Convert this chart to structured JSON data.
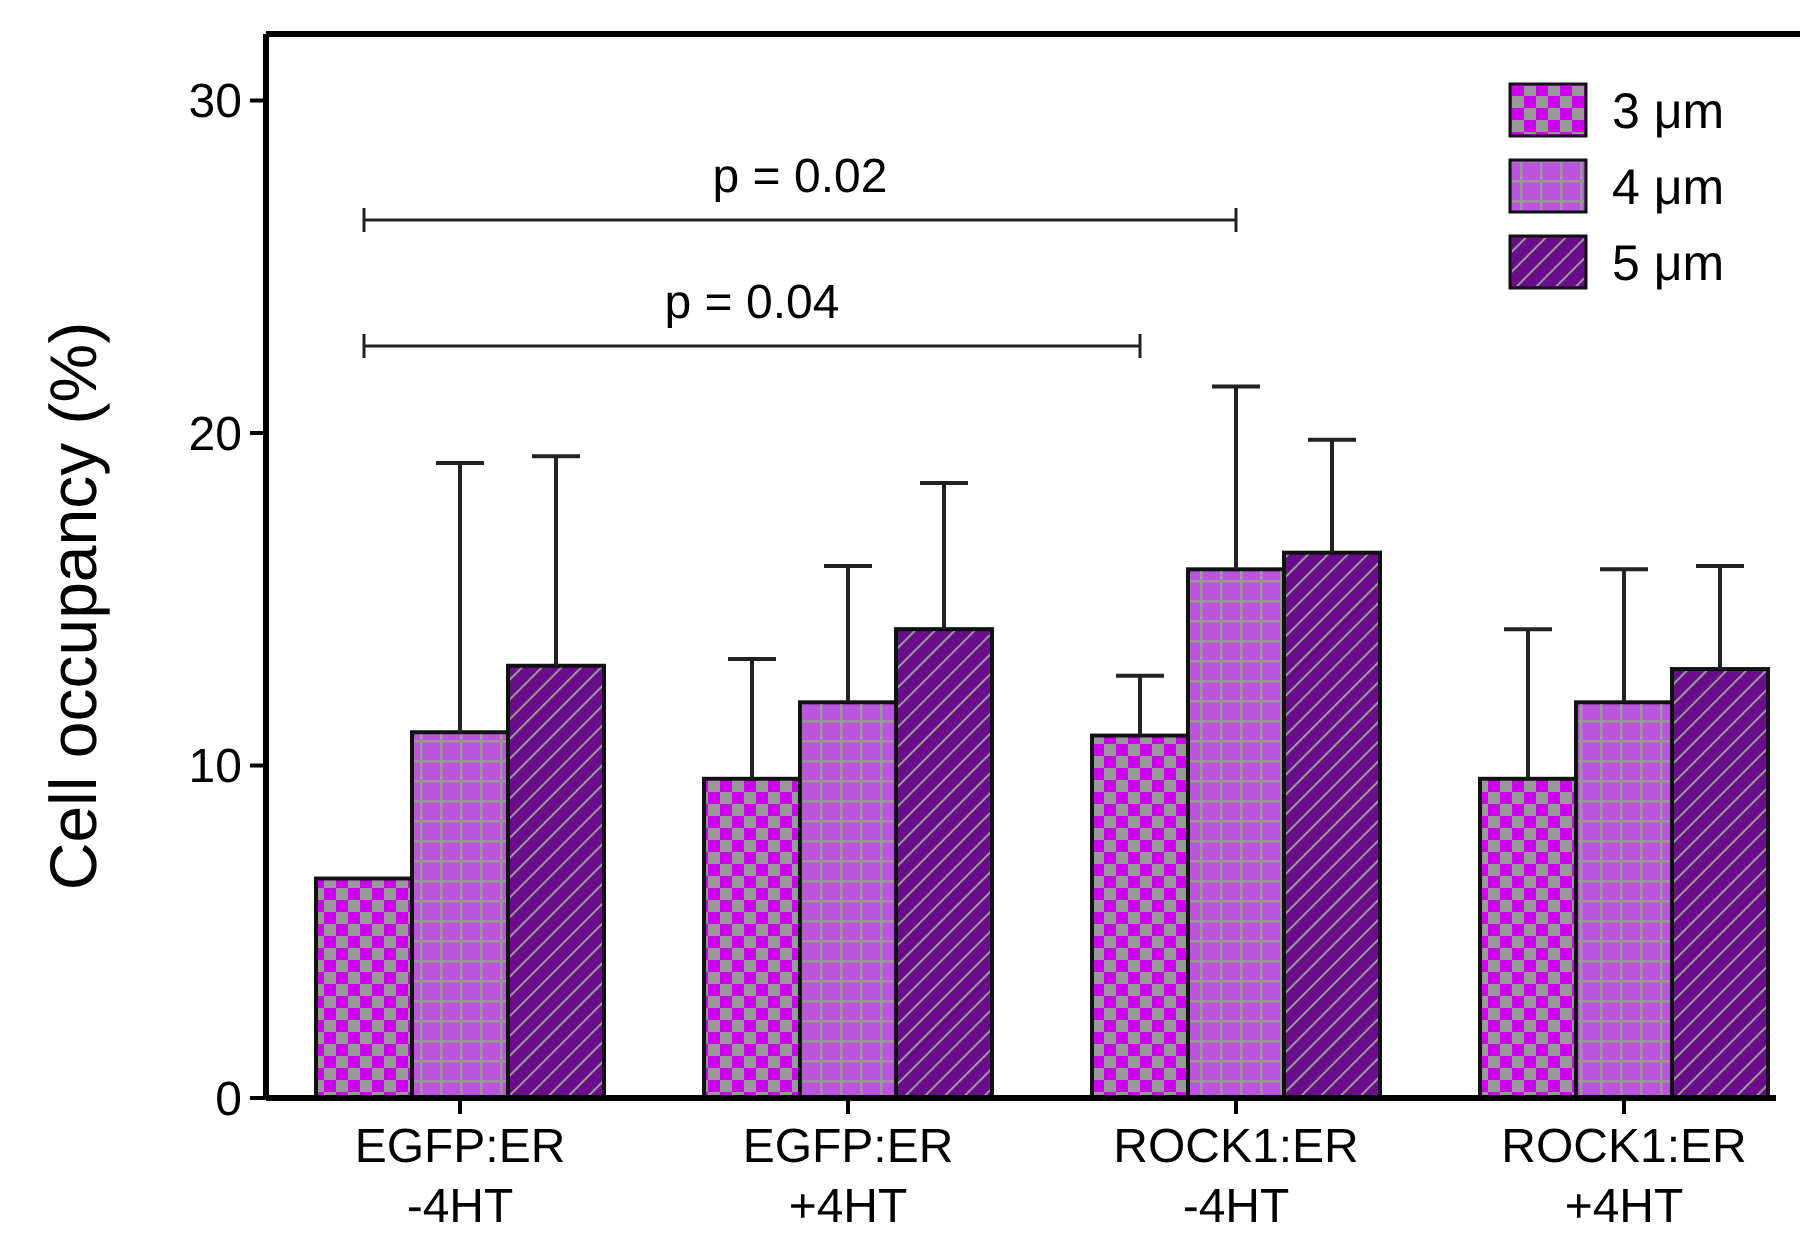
{
  "chart_data": {
    "type": "bar",
    "ylabel": "Cell occupancy (%)",
    "categories": [
      "EGFP:ER -4HT",
      "EGFP:ER +4HT",
      "ROCK1:ER -4HT",
      "ROCK1:ER +4HT"
    ],
    "series": [
      {
        "name": "3 μm",
        "color": "#cc00ee",
        "values": [
          6.6,
          9.6,
          10.9,
          9.6
        ],
        "errors": [
          null,
          [
            9.6,
            13.2
          ],
          [
            10.9,
            12.7
          ],
          [
            9.6,
            14.1
          ]
        ]
      },
      {
        "name": "4 μm",
        "color": "#bb55dd",
        "values": [
          11.0,
          11.9,
          15.9,
          11.9
        ],
        "errors": [
          [
            11.0,
            19.1
          ],
          [
            11.9,
            16.0
          ],
          [
            15.9,
            21.4
          ],
          [
            11.9,
            15.9
          ]
        ]
      },
      {
        "name": "5 μm",
        "color": "#6a0d8a",
        "values": [
          13.0,
          14.1,
          16.4,
          12.9
        ],
        "errors": [
          [
            13.0,
            19.3
          ],
          [
            14.1,
            18.5
          ],
          [
            16.4,
            19.8
          ],
          [
            12.9,
            16.0
          ]
        ]
      }
    ],
    "ylim": [
      0,
      32
    ],
    "yticks": [
      0,
      10,
      20,
      30
    ],
    "grid": false,
    "legend": "top right",
    "annotations": [
      "p = 0.02",
      "p = 0.04"
    ]
  }
}
